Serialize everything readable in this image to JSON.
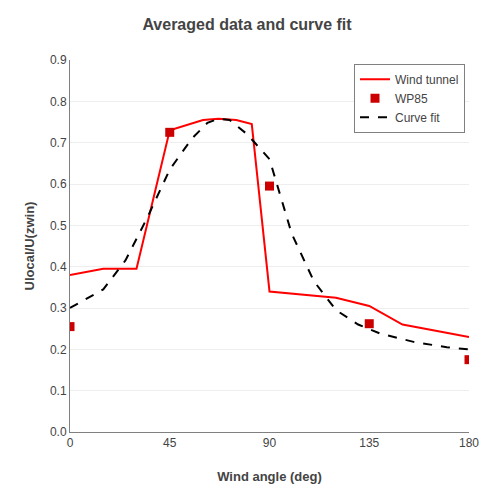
{
  "chart_data": {
    "type": "line",
    "title": "Averaged data and curve fit",
    "xlabel": "Wind angle (deg)",
    "ylabel": "Ulocal/U(zwin)",
    "series": [
      {
        "name": "Wind tunnel",
        "type": "line",
        "color": "#ff0000",
        "x": [
          0,
          15,
          30,
          45,
          60,
          67,
          75,
          82,
          90,
          100,
          112,
          120,
          135,
          150,
          165,
          180
        ],
        "values": [
          0.38,
          0.395,
          0.395,
          0.73,
          0.755,
          0.758,
          0.755,
          0.745,
          0.34,
          0.335,
          0.33,
          0.325,
          0.305,
          0.26,
          0.245,
          0.23
        ]
      },
      {
        "name": "WP85",
        "type": "scatter",
        "marker": "square",
        "color": "#cc0000",
        "x": [
          0,
          45,
          90,
          135,
          180
        ],
        "values": [
          0.255,
          0.725,
          0.595,
          0.262,
          0.175
        ]
      },
      {
        "name": "Curve fit",
        "type": "line",
        "line_style": "dashed",
        "color": "#000000",
        "x": [
          0,
          15,
          25,
          35,
          45,
          55,
          62,
          67,
          72,
          80,
          90,
          100,
          110,
          120,
          130,
          140,
          155,
          170,
          180
        ],
        "values": [
          0.3,
          0.345,
          0.415,
          0.52,
          0.635,
          0.71,
          0.748,
          0.758,
          0.755,
          0.72,
          0.66,
          0.48,
          0.365,
          0.295,
          0.26,
          0.238,
          0.218,
          0.205,
          0.2
        ]
      }
    ],
    "xlim": [
      0,
      180
    ],
    "xticks": [
      0,
      45,
      90,
      135,
      180
    ],
    "ylim": [
      0,
      0.9
    ],
    "yticks": [
      {
        "value": 0,
        "label": "0.0"
      },
      0.1,
      0.2,
      0.3,
      0.4,
      0.5,
      0.6,
      0.7,
      0.8,
      0.9
    ],
    "grid": "y",
    "legend": "upper right"
  }
}
